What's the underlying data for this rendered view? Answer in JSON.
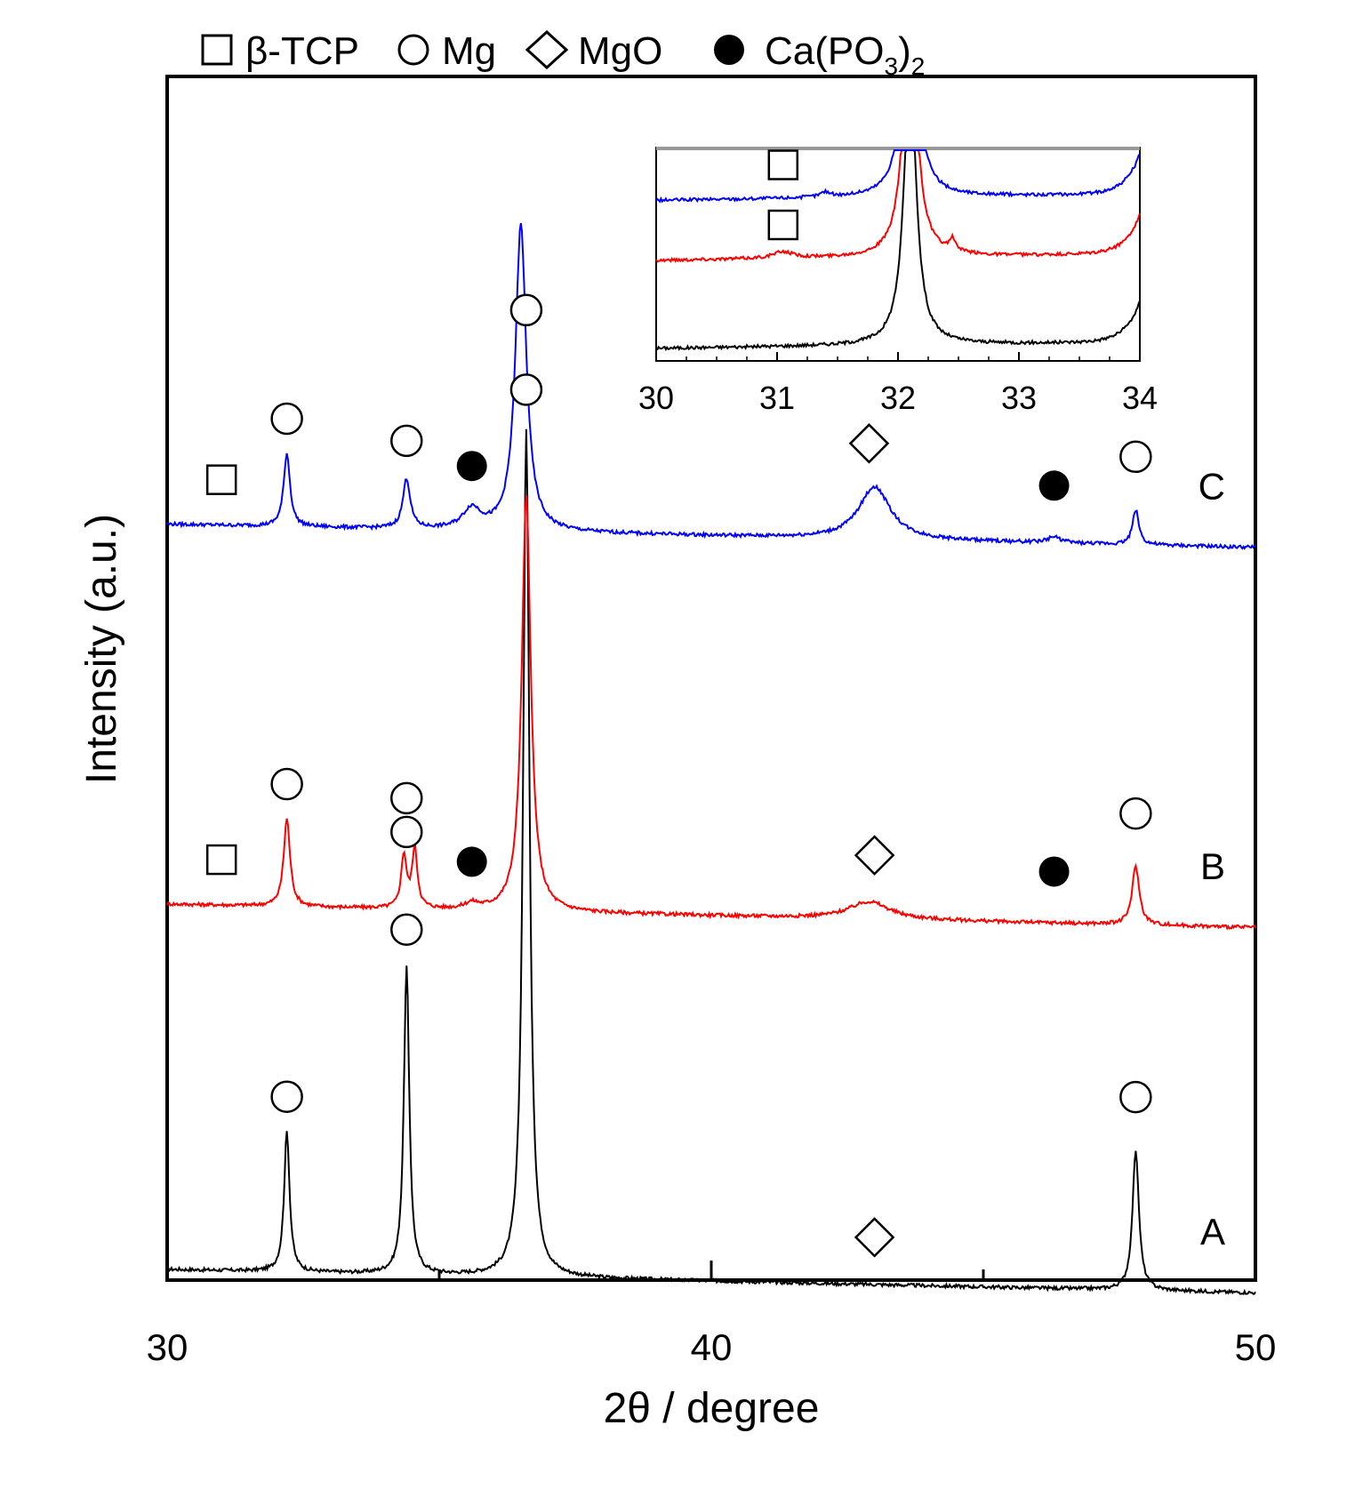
{
  "chart_data": {
    "type": "line",
    "xlabel": "2θ / degree",
    "ylabel": "Intensity (a.u.)",
    "xlim": [
      30,
      50
    ],
    "x_ticks": [
      30,
      40,
      50
    ],
    "x_tick_labels": [
      "30",
      "40",
      "50"
    ],
    "legend": [
      {
        "marker": "open-square",
        "label": "β-TCP"
      },
      {
        "marker": "open-circle",
        "label": "Mg"
      },
      {
        "marker": "open-diamond",
        "label": "MgO"
      },
      {
        "marker": "filled-circle",
        "label": "Ca(PO3)2",
        "label_main": "Ca(PO",
        "label_sub1": "3",
        "label_paren": ")",
        "label_sub2": "2"
      }
    ],
    "series": [
      {
        "name": "A",
        "color": "#000000",
        "baseline": 0.0,
        "peaks": [
          {
            "x": 32.2,
            "height": 0.48,
            "width": 0.06
          },
          {
            "x": 34.4,
            "height": 1.05,
            "width": 0.06
          },
          {
            "x": 36.6,
            "height": 2.9,
            "width": 0.07
          },
          {
            "x": 47.8,
            "height": 0.48,
            "width": 0.07
          }
        ],
        "markers": [
          {
            "x": 32.2,
            "type": "open-circle"
          },
          {
            "x": 34.4,
            "type": "open-circle"
          },
          {
            "x": 36.6,
            "type": "open-circle"
          },
          {
            "x": 43.0,
            "type": "open-diamond"
          },
          {
            "x": 47.8,
            "type": "open-circle"
          }
        ]
      },
      {
        "name": "B",
        "color": "#ff0000",
        "baseline": 1.25,
        "peaks": [
          {
            "x": 32.2,
            "height": 0.3,
            "width": 0.07
          },
          {
            "x": 34.35,
            "height": 0.18,
            "width": 0.06
          },
          {
            "x": 34.55,
            "height": 0.2,
            "width": 0.06
          },
          {
            "x": 35.6,
            "height": 0.02,
            "width": 0.15
          },
          {
            "x": 36.6,
            "height": 1.42,
            "width": 0.1
          },
          {
            "x": 42.9,
            "height": 0.06,
            "width": 0.45
          },
          {
            "x": 47.8,
            "height": 0.2,
            "width": 0.08
          }
        ],
        "markers": [
          {
            "x": 31.0,
            "type": "open-square"
          },
          {
            "x": 32.2,
            "type": "open-circle"
          },
          {
            "x": 34.4,
            "type": "open-circle"
          },
          {
            "x": 34.4,
            "type": "open-circle"
          },
          {
            "x": 35.6,
            "type": "filled-circle"
          },
          {
            "x": 43.0,
            "type": "open-diamond"
          },
          {
            "x": 46.3,
            "type": "filled-circle"
          },
          {
            "x": 47.8,
            "type": "open-circle"
          }
        ]
      },
      {
        "name": "C",
        "color": "#0000ff",
        "baseline": 2.55,
        "peaks": [
          {
            "x": 32.2,
            "height": 0.25,
            "width": 0.07
          },
          {
            "x": 34.4,
            "height": 0.17,
            "width": 0.08
          },
          {
            "x": 35.6,
            "height": 0.07,
            "width": 0.2
          },
          {
            "x": 36.5,
            "height": 1.05,
            "width": 0.12
          },
          {
            "x": 43.0,
            "height": 0.18,
            "width": 0.35
          },
          {
            "x": 46.3,
            "height": 0.02,
            "width": 0.15
          },
          {
            "x": 47.8,
            "height": 0.12,
            "width": 0.07
          }
        ],
        "markers": [
          {
            "x": 31.0,
            "type": "open-square"
          },
          {
            "x": 32.2,
            "type": "open-circle"
          },
          {
            "x": 34.4,
            "type": "open-circle"
          },
          {
            "x": 35.6,
            "type": "filled-circle"
          },
          {
            "x": 36.6,
            "type": "open-circle"
          },
          {
            "x": 42.9,
            "type": "open-diamond"
          },
          {
            "x": 46.3,
            "type": "filled-circle"
          },
          {
            "x": 47.8,
            "type": "open-circle"
          }
        ]
      }
    ],
    "inset": {
      "xlim": [
        30,
        34
      ],
      "x_ticks": [
        30,
        31,
        32,
        33,
        34
      ],
      "x_tick_labels": [
        "30",
        "31",
        "32",
        "33",
        "34"
      ],
      "series": [
        {
          "name": "A",
          "color": "#000000",
          "baseline": 0.0
        },
        {
          "name": "B",
          "color": "#ff0000",
          "baseline": 1.1
        },
        {
          "name": "C",
          "color": "#0000ff",
          "baseline": 1.85
        }
      ],
      "markers": [
        {
          "x": 31.05,
          "series": "C",
          "type": "open-square"
        },
        {
          "x": 31.05,
          "series": "B",
          "type": "open-square"
        }
      ]
    }
  }
}
